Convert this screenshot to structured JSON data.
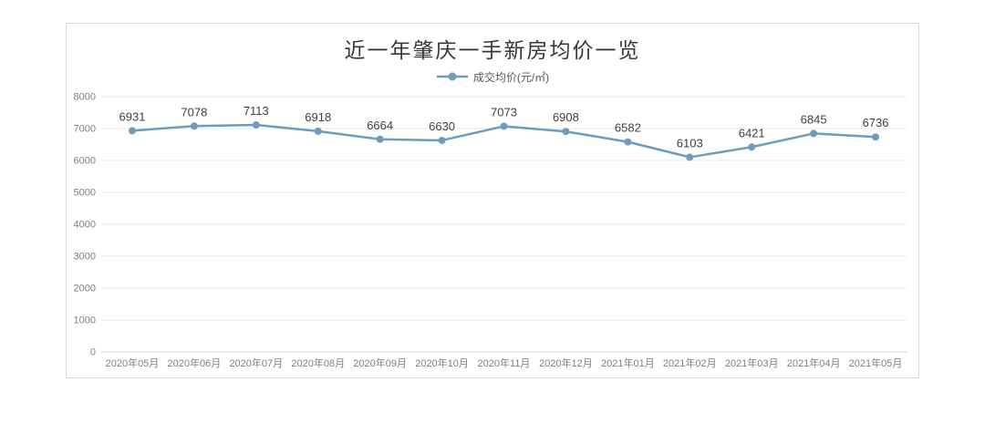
{
  "chart_data": {
    "type": "line",
    "title": "近一年肇庆一手新房均价一览",
    "legend": "成交均价(元/㎡)",
    "legend_position": "top",
    "categories": [
      "2020年05月",
      "2020年06月",
      "2020年07月",
      "2020年08月",
      "2020年09月",
      "2020年10月",
      "2020年11月",
      "2020年12月",
      "2021年01月",
      "2021年02月",
      "2021年03月",
      "2021年04月",
      "2021年05月"
    ],
    "values": [
      6931,
      7078,
      7113,
      6918,
      6664,
      6630,
      7073,
      6908,
      6582,
      6103,
      6421,
      6845,
      6736
    ],
    "xlabel": "",
    "ylabel": "",
    "ylim": [
      0,
      8000
    ],
    "ytick_step": 1000,
    "yticks": [
      0,
      1000,
      2000,
      3000,
      4000,
      5000,
      6000,
      7000,
      8000
    ],
    "grid": true,
    "colors": {
      "line": "#6f9cba",
      "marker": "#6f9cba",
      "data_label": "#404040",
      "axis_text": "#7f7f7f",
      "gridline": "#e8e8e8",
      "baseline": "#d0d0d0",
      "card_border": "#d9d9d9",
      "title": "#383838"
    }
  }
}
